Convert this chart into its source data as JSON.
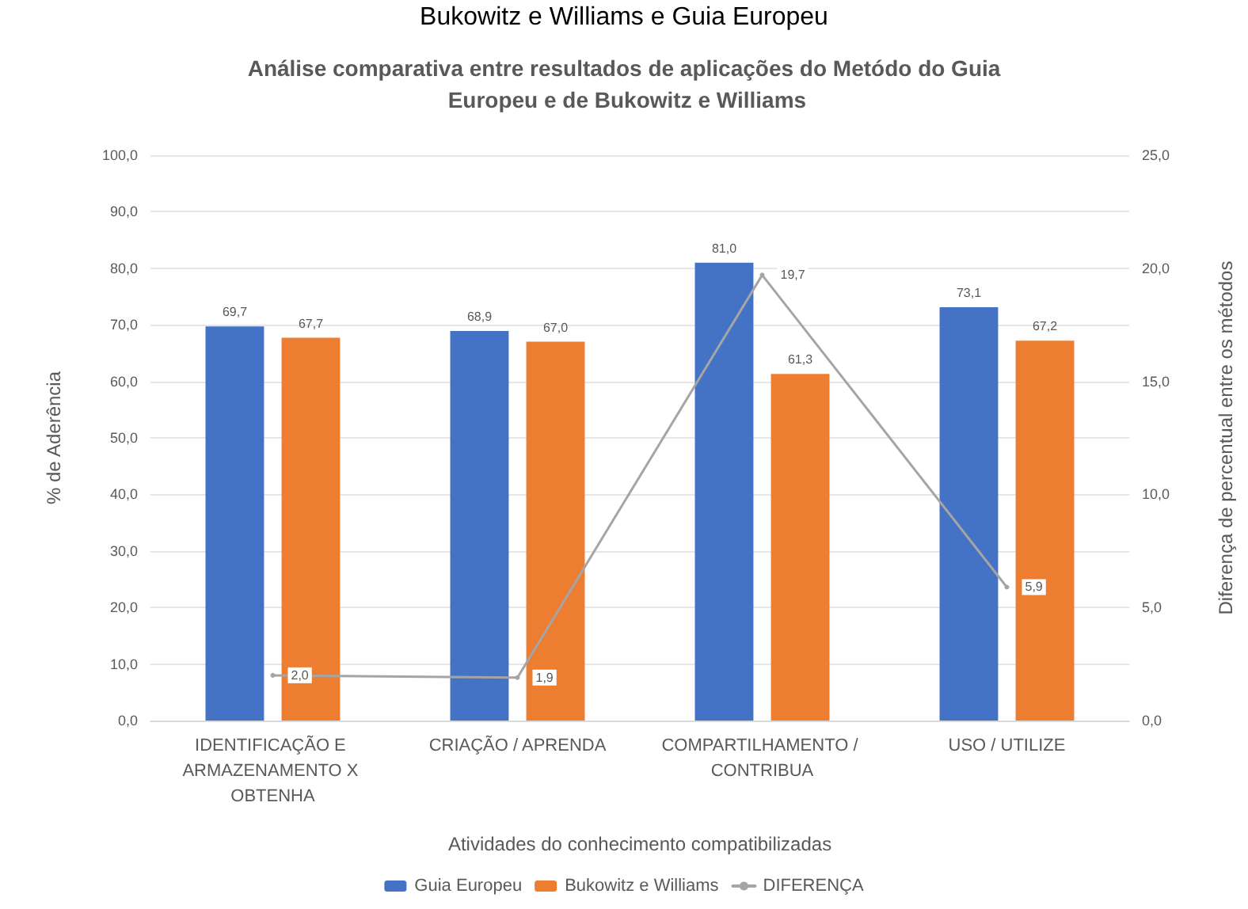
{
  "chart_data": {
    "type": "bar",
    "title": "Análise comparativa entre resultados de aplicações do Metódo do Guia Europeu e de Bukowitz e Williams",
    "annotations": [
      "Bukowitz e Williams e Guia Europeu"
    ],
    "xlabel": "Atividades do conhecimento compatibilizadas",
    "ylabel": "% de Aderência",
    "y2label": "Diferença de percentual entre os métodos",
    "categories": [
      "IDENTIFICAÇÃO E ARMAZENAMENTO X OBTENHA",
      "CRIAÇÃO / APRENDA",
      "COMPARTILHAMENTO / CONTRIBUA",
      "USO / UTILIZE"
    ],
    "series": [
      {
        "name": "Guia Europeu",
        "color": "#4472c4",
        "values": [
          69.7,
          68.9,
          81.0,
          73.1
        ],
        "value_labels": [
          "69,7",
          "68,9",
          "81,0",
          "73,1"
        ]
      },
      {
        "name": "Bukowitz e Williams",
        "color": "#ed7d31",
        "values": [
          67.7,
          67.0,
          61.3,
          67.2
        ],
        "value_labels": [
          "67,7",
          "67,0",
          "61,3",
          "67,2"
        ]
      },
      {
        "name": "DIFERENÇA",
        "type": "line",
        "marker": "circle",
        "axis": "y2",
        "color": "#a5a5a5",
        "values": [
          2.0,
          1.9,
          19.7,
          5.9
        ],
        "value_labels": [
          "2,0",
          "1,9",
          "19,7",
          "5,9"
        ]
      }
    ],
    "ylim": [
      0,
      100
    ],
    "yticks": [
      {
        "value": 0,
        "label": "0,0"
      },
      {
        "value": 10,
        "label": "10,0"
      },
      {
        "value": 20,
        "label": "20,0"
      },
      {
        "value": 30,
        "label": "30,0"
      },
      {
        "value": 40,
        "label": "40,0"
      },
      {
        "value": 50,
        "label": "50,0"
      },
      {
        "value": 60,
        "label": "60,0"
      },
      {
        "value": 70,
        "label": "70,0"
      },
      {
        "value": 80,
        "label": "80,0"
      },
      {
        "value": 90,
        "label": "90,0"
      },
      {
        "value": 100,
        "label": "100,0"
      }
    ],
    "y2lim": [
      0,
      25
    ],
    "y2ticks": [
      {
        "value": 0,
        "label": "0,0"
      },
      {
        "value": 5,
        "label": "5,0"
      },
      {
        "value": 10,
        "label": "10,0"
      },
      {
        "value": 15,
        "label": "15,0"
      },
      {
        "value": 20,
        "label": "20,0"
      },
      {
        "value": 25,
        "label": "25,0"
      }
    ],
    "grid": "y",
    "legend": "bottom"
  }
}
